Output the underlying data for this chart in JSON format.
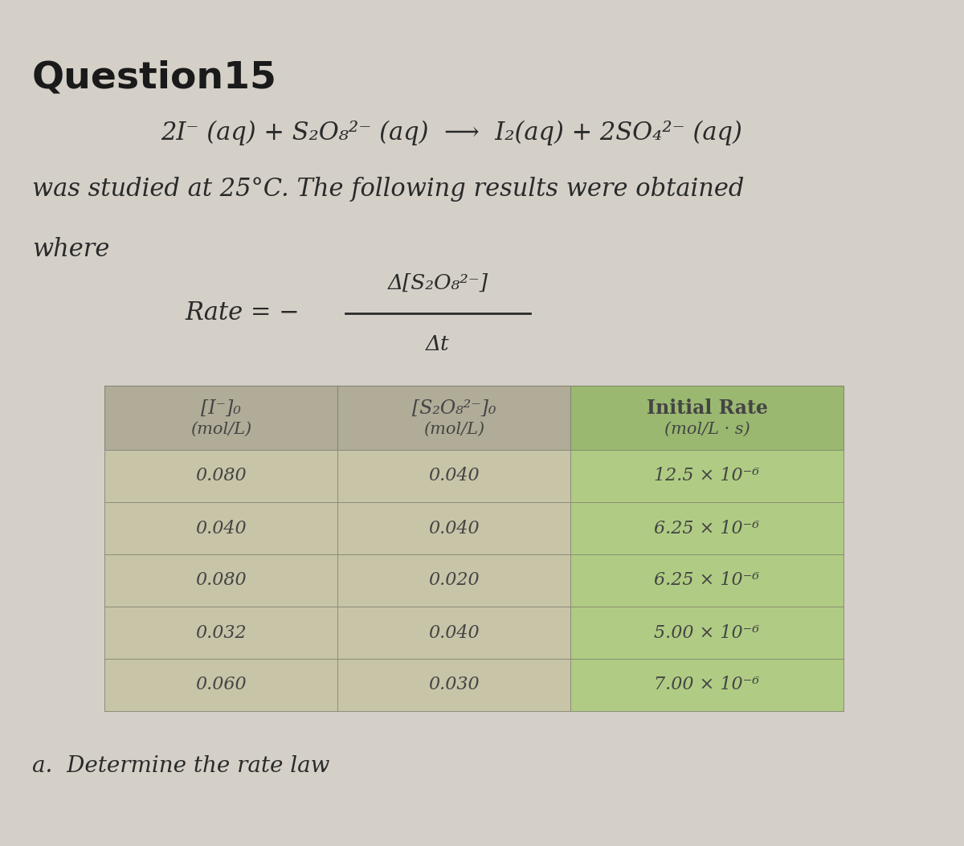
{
  "title": "Question15",
  "reaction_line": "2I⁻ (aq) + S₂O₈²⁻ (aq)  ⟶  I₂(aq) + 2SO₄²⁻ (aq)",
  "studied_text": "was studied at 25°C. The following results were obtained",
  "where_text": "where",
  "rate_numerator": "Δ[S₂O₈²⁻]",
  "rate_denominator": "Δt",
  "col1_header1": "[I⁻]₀",
  "col1_header2": "(mol/L)",
  "col2_header1": "[S₂O₈²⁻]₀",
  "col2_header2": "(mol/L)",
  "col3_header1": "Initial Rate",
  "col3_header2": "(mol/L · s)",
  "col1_data": [
    "0.080",
    "0.040",
    "0.080",
    "0.032",
    "0.060"
  ],
  "col2_data": [
    "0.040",
    "0.040",
    "0.020",
    "0.040",
    "0.030"
  ],
  "col3_data": [
    "12.5 × 10⁻⁶",
    "6.25 × 10⁻⁶",
    "6.25 × 10⁻⁶",
    "5.00 × 10⁻⁶",
    "7.00 × 10⁻⁶"
  ],
  "footer_text": "a.  Determine the rate law",
  "bg_color": "#d4d0c8",
  "table_col12_header_bg": "#b0ac98",
  "table_col3_header_bg": "#9ab870",
  "table_col12_data_bg": "#c8c4a8",
  "table_col3_data_bg": "#b0cc84",
  "text_color": "#2a2a2a",
  "title_color": "#1a1a1a",
  "table_text_color": "#444444"
}
